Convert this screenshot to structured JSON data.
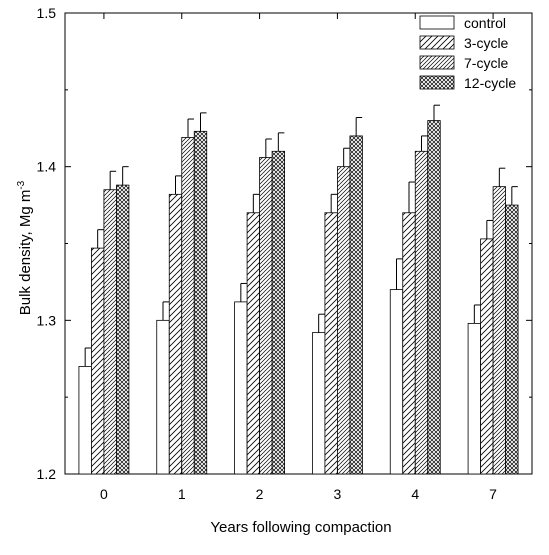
{
  "chart_data": {
    "type": "bar",
    "title": "",
    "xlabel": "Years following compaction",
    "ylabel": "Bulk density, Mg m",
    "ylabel_superscript": "-3",
    "ylim": [
      1.2,
      1.5
    ],
    "yticks": [
      "1.2",
      "1.3",
      "1.4",
      "1.5"
    ],
    "ytick_values": [
      1.2,
      1.3,
      1.4,
      1.5
    ],
    "categories": [
      "0",
      "1",
      "2",
      "3",
      "4",
      "7"
    ],
    "legend_position": "top-right",
    "series": [
      {
        "name": "control",
        "pattern": "none",
        "values": [
          1.27,
          1.3,
          1.312,
          1.292,
          1.32,
          1.298
        ],
        "errors": [
          0.012,
          0.012,
          0.012,
          0.012,
          0.02,
          0.012
        ]
      },
      {
        "name": "3-cycle",
        "pattern": "sparse-diagonal",
        "values": [
          1.347,
          1.382,
          1.37,
          1.37,
          1.37,
          1.353
        ],
        "errors": [
          0.012,
          0.012,
          0.012,
          0.012,
          0.02,
          0.012
        ]
      },
      {
        "name": "7-cycle",
        "pattern": "dense-diagonal",
        "values": [
          1.385,
          1.419,
          1.406,
          1.4,
          1.41,
          1.387
        ],
        "errors": [
          0.012,
          0.012,
          0.012,
          0.012,
          0.01,
          0.012
        ]
      },
      {
        "name": "12-cycle",
        "pattern": "crosshatch",
        "values": [
          1.388,
          1.423,
          1.41,
          1.42,
          1.43,
          1.375
        ],
        "errors": [
          0.012,
          0.012,
          0.012,
          0.012,
          0.01,
          0.012
        ]
      }
    ]
  }
}
